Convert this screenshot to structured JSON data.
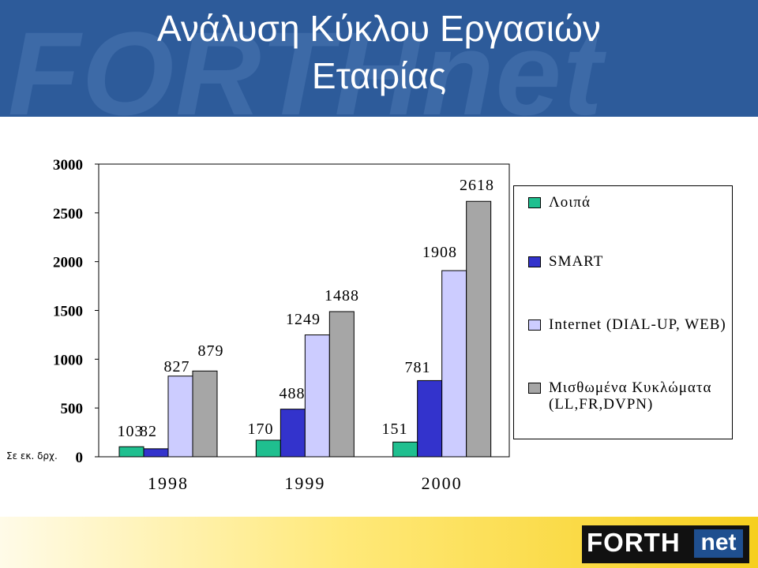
{
  "header": {
    "title_line1": "Ανάλυση Κύκλου Εργασιών",
    "title_line2": "Εταιρίας",
    "watermark": "FORTHnet",
    "background": "#2d5b9a"
  },
  "chart_data": {
    "type": "bar",
    "categories": [
      "1998",
      "1999",
      "2000"
    ],
    "series": [
      {
        "name": "Λοιπά",
        "color": "#1fbf8f",
        "values": [
          103,
          170,
          151
        ]
      },
      {
        "name": "SMART",
        "color": "#3333cc",
        "values": [
          82,
          488,
          781
        ]
      },
      {
        "name": "Internet (DIAL-UP, WEB)",
        "color": "#ccccff",
        "values": [
          827,
          1249,
          1908
        ]
      },
      {
        "name": "Μισθωμένα Κυκλώματα (LL,FR,DVPN)",
        "color": "#a6a6a6",
        "values": [
          879,
          1488,
          2618
        ]
      }
    ],
    "data_labels": [
      [
        "103",
        "82",
        "827",
        "879"
      ],
      [
        "170",
        "488",
        "1249",
        "1488"
      ],
      [
        "151",
        "781",
        "1908",
        "2618"
      ]
    ],
    "ylim": [
      0,
      3000
    ],
    "yticks": [
      "0",
      "500",
      "1000",
      "1500",
      "2000",
      "2500",
      "3000"
    ],
    "unit_label": "Σε εκ. δρχ.",
    "legend_position": "right"
  },
  "legend": {
    "items": [
      {
        "label": "Λοιπά",
        "color": "#1fbf8f"
      },
      {
        "label": "SMART",
        "color": "#3333cc"
      },
      {
        "label": "Internet (DIAL-UP, WEB)",
        "color": "#ccccff"
      },
      {
        "label": "Μισθωμένα Κυκλώματα (LL,FR,DVPN)",
        "color": "#a6a6a6"
      }
    ]
  },
  "footer": {
    "logo_forth": "FORTH",
    "logo_net": "net"
  }
}
